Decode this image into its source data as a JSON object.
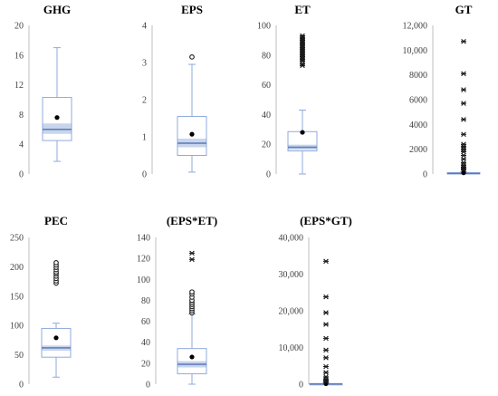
{
  "colors": {
    "box_stroke": "#8faadc",
    "ci_fill": "#c8d5ec",
    "median": "#5a7ab8",
    "mean": "#000000",
    "outlier": "#1a1a1a",
    "axis": "#bfbfbf"
  },
  "chart_data": [
    {
      "type": "box",
      "title": "GHG",
      "ylim": [
        0,
        20
      ],
      "yticks": [
        0,
        4,
        8,
        12,
        16,
        20
      ],
      "yticklabels": [
        "0",
        "4",
        "8",
        "12",
        "16",
        "20"
      ],
      "whisker_low": 1.7,
      "q1": 4.5,
      "median": 6.0,
      "q3": 10.3,
      "whisker_high": 17.0,
      "ci": [
        5.4,
        6.8
      ],
      "mean": 7.6,
      "outliers": [],
      "outlier_marker": "circle"
    },
    {
      "type": "box",
      "title": "EPS",
      "ylim": [
        0,
        4
      ],
      "yticks": [
        0,
        1,
        2,
        3,
        4
      ],
      "yticklabels": [
        "0",
        "1",
        "2",
        "3",
        "4"
      ],
      "whisker_low": 0.05,
      "q1": 0.5,
      "median": 0.83,
      "q3": 1.55,
      "whisker_high": 2.95,
      "ci": [
        0.72,
        0.95
      ],
      "mean": 1.07,
      "outliers": [
        3.15
      ],
      "outlier_marker": "circle"
    },
    {
      "type": "box",
      "title": "ET",
      "ylim": [
        0,
        100
      ],
      "yticks": [
        0,
        20,
        40,
        60,
        80,
        100
      ],
      "yticklabels": [
        "0",
        "20",
        "40",
        "60",
        "80",
        "100"
      ],
      "whisker_low": 0,
      "q1": 15.5,
      "median": 18,
      "q3": 28.5,
      "whisker_high": 43,
      "ci": [
        16.3,
        19.7
      ],
      "mean": 28,
      "outliers": [
        73,
        74,
        76,
        77,
        78,
        79,
        80,
        81,
        82,
        83,
        84,
        85,
        86,
        87,
        88,
        89,
        90,
        91,
        92,
        93
      ],
      "outlier_marker": "star"
    },
    {
      "type": "box",
      "title": "GT",
      "ylim": [
        0,
        12000
      ],
      "yticks": [
        0,
        2000,
        4000,
        6000,
        8000,
        10000,
        12000
      ],
      "yticklabels": [
        "0",
        "2000",
        "4000",
        "6000",
        "8000",
        "10,000",
        "12,000"
      ],
      "whisker_low": 0,
      "q1": 15,
      "median": 40,
      "q3": 110,
      "whisker_high": 160,
      "ci": [
        30,
        50
      ],
      "mean": 95,
      "outliers": [
        350,
        450,
        550,
        700,
        900,
        1200,
        1500,
        1800,
        2000,
        2200,
        2400,
        3200,
        4400,
        5700,
        6800,
        8100,
        10700
      ],
      "outlier_marker": "star"
    },
    {
      "type": "box",
      "title": "PEC",
      "ylim": [
        0,
        250
      ],
      "yticks": [
        0,
        50,
        100,
        150,
        200,
        250
      ],
      "yticklabels": [
        "0",
        "50",
        "100",
        "150",
        "200",
        "250"
      ],
      "whisker_low": 12,
      "q1": 46,
      "median": 62,
      "q3": 95,
      "whisker_high": 104,
      "ci": [
        57,
        66
      ],
      "mean": 79,
      "outliers": [
        172,
        176,
        180,
        184,
        188,
        191,
        195,
        199,
        203,
        207
      ],
      "outlier_marker": "circle"
    },
    {
      "type": "box",
      "title": "(EPS*ET)",
      "ylim": [
        0,
        140
      ],
      "yticks": [
        0,
        20,
        40,
        60,
        80,
        100,
        120,
        140
      ],
      "yticklabels": [
        "0",
        "20",
        "40",
        "60",
        "80",
        "100",
        "120",
        "140"
      ],
      "whisker_low": 0,
      "q1": 10,
      "median": 19,
      "q3": 34,
      "whisker_high": 67,
      "ci": [
        16,
        22
      ],
      "mean": 26,
      "outliers": [
        68,
        70,
        72,
        74,
        76,
        78,
        80,
        83,
        86,
        88
      ],
      "outlier_marker": "circle",
      "extreme_outliers": [
        119,
        125
      ]
    },
    {
      "type": "box",
      "title": "(EPS*GT)",
      "ylim": [
        0,
        40000
      ],
      "yticks": [
        0,
        10000,
        20000,
        30000,
        40000
      ],
      "yticklabels": [
        "0",
        "10,000",
        "20,000",
        "30,000",
        "40,000"
      ],
      "whisker_low": 0,
      "q1": 20,
      "median": 60,
      "q3": 180,
      "whisker_high": 400,
      "ci": [
        40,
        80
      ],
      "mean": 150,
      "outliers": [
        700,
        1000,
        1400,
        2000,
        3200,
        4800,
        7200,
        9300,
        12500,
        16300,
        19500,
        23800,
        33500
      ],
      "outlier_marker": "star"
    }
  ]
}
